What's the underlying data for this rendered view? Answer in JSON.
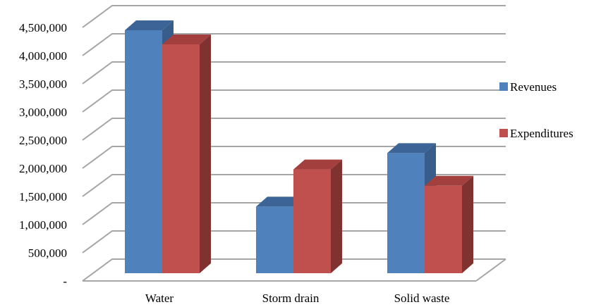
{
  "chart_data": {
    "type": "bar",
    "subtype": "clustered-3d-column",
    "title": "",
    "xlabel": "",
    "ylabel": "",
    "categories": [
      "Water",
      "Storm drain",
      "Solid waste"
    ],
    "series": [
      {
        "name": "Revenues",
        "values": [
          4450000,
          1320000,
          2270000
        ],
        "color": "#4f81bd",
        "top_color": "#3c6496",
        "side_color": "#385d8a"
      },
      {
        "name": "Expenditures",
        "values": [
          4200000,
          1980000,
          1690000
        ],
        "color": "#c0504d",
        "top_color": "#a3403d",
        "side_color": "#7f3230"
      }
    ],
    "ylim": [
      0,
      4500000
    ],
    "y_ticks": [
      0,
      500000,
      1000000,
      1500000,
      2000000,
      2500000,
      3000000,
      3500000,
      4000000,
      4500000
    ],
    "y_tick_labels": [
      "-",
      "500,000",
      "1,000,000",
      "1,500,000",
      "2,000,000",
      "2,500,000",
      "3,000,000",
      "3,500,000",
      "4,000,000",
      "4,500,000"
    ],
    "grid": true,
    "legend_position": "right"
  }
}
